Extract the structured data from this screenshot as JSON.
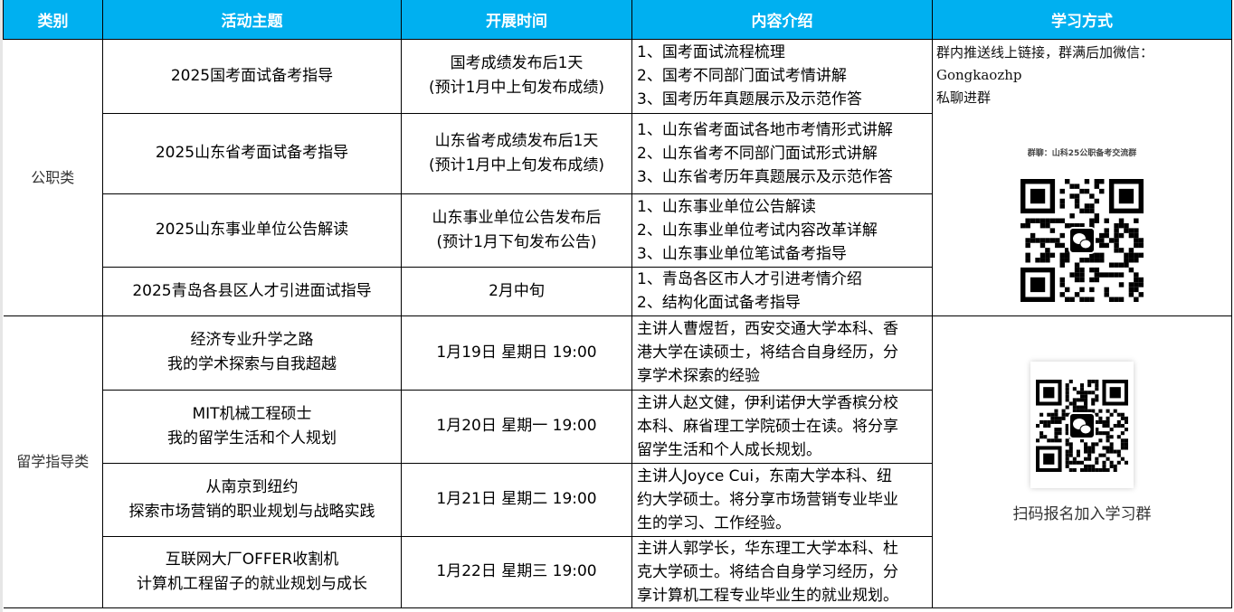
{
  "headers": [
    "类别",
    "活动主题",
    "开展时间",
    "内容介绍",
    "学习方式"
  ],
  "groups": [
    {
      "category": "公职类",
      "study": {
        "note_lines": [
          "群内推送线上链接，群满后加微信：",
          "Gongkaozhp",
          "私聊进群"
        ],
        "qr_caption": "群聊：山科25公职备考交流群",
        "qr_icon": "wechat-icon"
      },
      "rows": [
        {
          "topic": [
            "2025国考面试备考指导"
          ],
          "time": [
            "国考成绩发布后1天",
            "(预计1月中上旬发布成绩)"
          ],
          "content": [
            "1、国考面试流程梳理",
            "2、国考不同部门面试考情讲解",
            "3、国考历年真题展示及示范作答"
          ]
        },
        {
          "topic": [
            "2025山东省考面试备考指导"
          ],
          "time": [
            "山东省考成绩发布后1天",
            "(预计1月中上旬发布成绩)"
          ],
          "content": [
            "1、山东省考面试各地市考情形式讲解",
            "2、山东省考不同部门面试形式讲解",
            "3、山东省考历年真题展示及示范作答"
          ]
        },
        {
          "topic": [
            "2025山东事业单位公告解读"
          ],
          "time": [
            "山东事业单位公告发布后",
            "(预计1月下旬发布公告)"
          ],
          "content": [
            "1、山东事业单位公告解读",
            "2、山东事业单位考试内容改革详解",
            "3、山东事业单位笔试备考指导"
          ]
        },
        {
          "topic": [
            "2025青岛各县区人才引进面试指导"
          ],
          "time": [
            "2月中旬"
          ],
          "content": [
            "1、青岛各区市人才引进考情介绍",
            "2、结构化面试备考指导"
          ]
        }
      ]
    },
    {
      "category": "留学指导类",
      "study": {
        "qr_caption": "扫码报名加入学习群",
        "qr_icon": "wechat-icon"
      },
      "rows": [
        {
          "topic": [
            "经济专业升学之路",
            "我的学术探索与自我超越"
          ],
          "time": [
            "1月19日 星期日 19:00"
          ],
          "content": [
            "主讲人曹煜哲，西安交通大学本科、香",
            "港大学在读硕士，将结合自身经历，分",
            "享学术探索的经验"
          ]
        },
        {
          "topic": [
            "MIT机械工程硕士",
            "我的留学生活和个人规划"
          ],
          "time": [
            "1月20日 星期一 19:00"
          ],
          "content": [
            "主讲人赵文健，伊利诺伊大学香槟分校",
            "本科、麻省理工学院硕士在读。将分享",
            "留学生活和个人成长规划。"
          ]
        },
        {
          "topic": [
            "从南京到纽约",
            "探索市场营销的职业规划与战略实践"
          ],
          "time": [
            "1月21日 星期二 19:00"
          ],
          "content": [
            "主讲人Joyce Cui，东南大学本科、纽",
            "约大学硕士。将分享市场营销专业毕业",
            "生的学习、工作经验。"
          ]
        },
        {
          "topic": [
            "互联网大厂OFFER收割机",
            "计算机工程留子的就业规划与成长"
          ],
          "time": [
            "1月22日 星期三 19:00"
          ],
          "content": [
            "主讲人郭学长，华东理工大学本科、杜",
            "克大学硕士。将结合自身学习经历，分",
            "享计算机工程专业毕业生的就业规划。"
          ]
        }
      ]
    }
  ],
  "colors": {
    "header_bg": "#00B0F0",
    "header_text": "#FFFFFF"
  }
}
